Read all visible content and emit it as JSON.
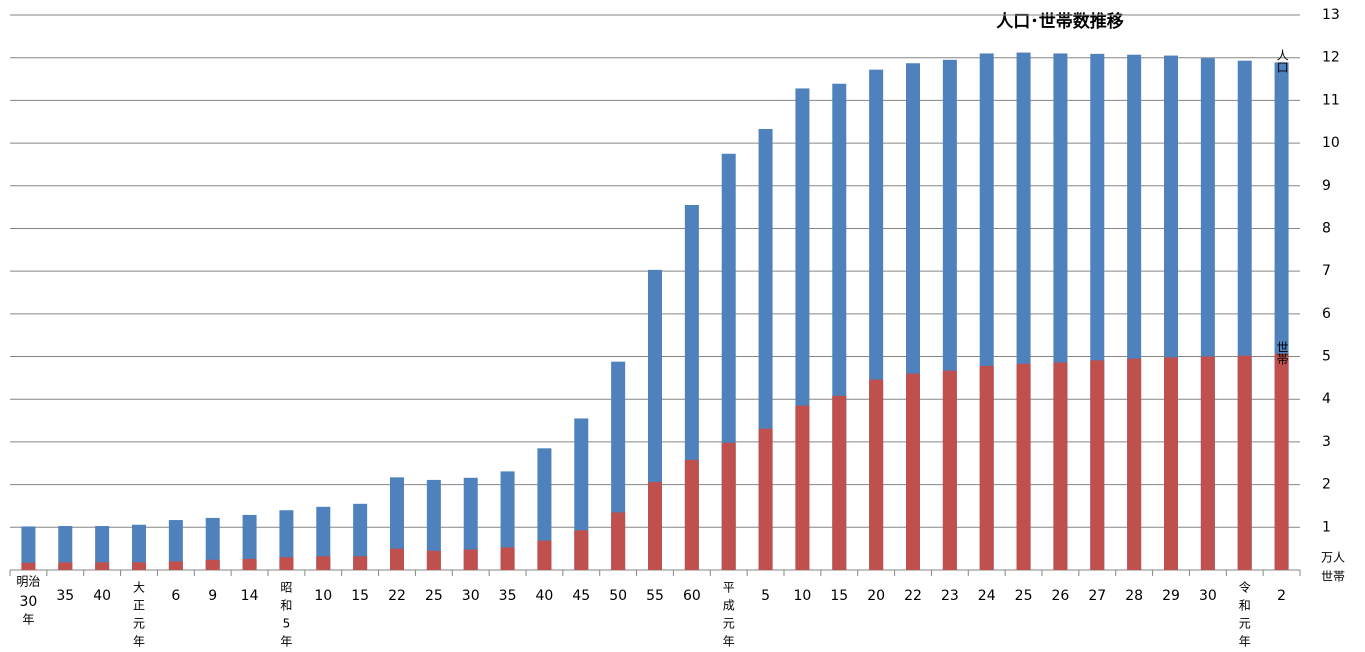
{
  "chart_data": {
    "type": "bar",
    "title": "人口･世帯数推移",
    "categories": [
      [
        "明治",
        "30",
        "年"
      ],
      [
        "35"
      ],
      [
        "40"
      ],
      [
        "大",
        "正",
        "元",
        "年"
      ],
      [
        "6"
      ],
      [
        "9"
      ],
      [
        "14"
      ],
      [
        "昭",
        "和",
        "5",
        "年"
      ],
      [
        "10"
      ],
      [
        "15"
      ],
      [
        "22"
      ],
      [
        "25"
      ],
      [
        "30"
      ],
      [
        "35"
      ],
      [
        "40"
      ],
      [
        "45"
      ],
      [
        "50"
      ],
      [
        "55"
      ],
      [
        "60"
      ],
      [
        "平",
        "成",
        "元",
        "年"
      ],
      [
        "5"
      ],
      [
        "10"
      ],
      [
        "15"
      ],
      [
        "20"
      ],
      [
        "22"
      ],
      [
        "23"
      ],
      [
        "24"
      ],
      [
        "25"
      ],
      [
        "26"
      ],
      [
        "27"
      ],
      [
        "28"
      ],
      [
        "29"
      ],
      [
        "30"
      ],
      [
        "令",
        "和",
        "元",
        "年"
      ],
      [
        "2"
      ]
    ],
    "series": [
      {
        "name": "人口",
        "color": "#4f81bd",
        "values": [
          1.02,
          1.03,
          1.03,
          1.06,
          1.17,
          1.22,
          1.29,
          1.4,
          1.48,
          1.55,
          2.17,
          2.11,
          2.16,
          2.31,
          2.85,
          3.55,
          4.88,
          7.03,
          8.55,
          9.75,
          10.33,
          11.28,
          11.39,
          11.72,
          11.87,
          11.95,
          12.1,
          12.12,
          12.1,
          12.09,
          12.07,
          12.05,
          11.99,
          11.93,
          11.89
        ]
      },
      {
        "name": "世帯",
        "color": "#c0504d",
        "values": [
          0.17,
          0.18,
          0.18,
          0.18,
          0.2,
          0.24,
          0.26,
          0.3,
          0.32,
          0.32,
          0.5,
          0.45,
          0.48,
          0.53,
          0.69,
          0.93,
          1.35,
          2.06,
          2.58,
          2.98,
          3.31,
          3.85,
          4.08,
          4.46,
          4.6,
          4.67,
          4.78,
          4.83,
          4.86,
          4.91,
          4.95,
          4.98,
          5.0,
          5.02,
          5.07
        ]
      }
    ],
    "unit_labels": [
      "万人",
      "世帯"
    ],
    "ylim": [
      0,
      13
    ],
    "yticks": [
      1,
      2,
      3,
      4,
      5,
      6,
      7,
      8,
      9,
      10,
      11,
      12,
      13
    ],
    "grid": true
  }
}
